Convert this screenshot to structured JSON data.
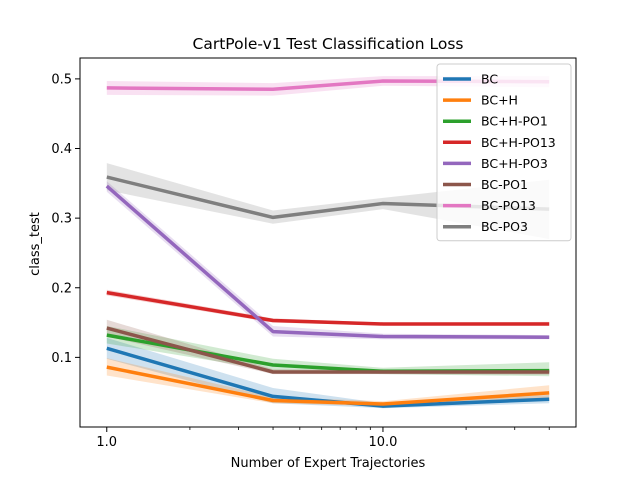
{
  "chart_data": {
    "type": "line",
    "title": "CartPole-v1 Test Classification Loss",
    "xlabel": "Number of Expert Trajectories",
    "ylabel": "class_test",
    "x_scale": "log",
    "x": [
      1,
      4,
      10,
      40
    ],
    "xticks": [
      1,
      10
    ],
    "xtick_labels": [
      "1.0",
      "10.0"
    ],
    "xlim": [
      0.8,
      50
    ],
    "yticks": [
      0.1,
      0.2,
      0.3,
      0.4,
      0.5
    ],
    "ytick_labels": [
      "0.1",
      "0.2",
      "0.3",
      "0.4",
      "0.5"
    ],
    "ylim": [
      0.0,
      0.53
    ],
    "grid": false,
    "legend_position": "top-right",
    "series": [
      {
        "name": "BC",
        "color": "#1f77b4",
        "values": [
          0.113,
          0.044,
          0.03,
          0.04
        ],
        "lower": [
          0.098,
          0.034,
          0.027,
          0.034
        ],
        "upper": [
          0.128,
          0.056,
          0.034,
          0.046
        ]
      },
      {
        "name": "BC+H",
        "color": "#ff7f0e",
        "values": [
          0.086,
          0.038,
          0.033,
          0.049
        ],
        "lower": [
          0.074,
          0.034,
          0.03,
          0.04
        ],
        "upper": [
          0.099,
          0.043,
          0.037,
          0.06
        ]
      },
      {
        "name": "BC+H-PO1",
        "color": "#2ca02c",
        "values": [
          0.132,
          0.089,
          0.08,
          0.081
        ],
        "lower": [
          0.12,
          0.081,
          0.076,
          0.073
        ],
        "upper": [
          0.145,
          0.098,
          0.085,
          0.093
        ]
      },
      {
        "name": "BC+H-PO13",
        "color": "#d62728",
        "values": [
          0.193,
          0.153,
          0.148,
          0.148
        ],
        "lower": [
          0.189,
          0.15,
          0.146,
          0.146
        ],
        "upper": [
          0.197,
          0.156,
          0.15,
          0.151
        ]
      },
      {
        "name": "BC+H-PO3",
        "color": "#9467bd",
        "values": [
          0.346,
          0.137,
          0.13,
          0.129
        ],
        "lower": [
          0.338,
          0.13,
          0.126,
          0.126
        ],
        "upper": [
          0.353,
          0.145,
          0.134,
          0.132
        ]
      },
      {
        "name": "BC-PO1",
        "color": "#8c564b",
        "values": [
          0.142,
          0.079,
          0.079,
          0.079
        ],
        "lower": [
          0.13,
          0.076,
          0.076,
          0.075
        ],
        "upper": [
          0.154,
          0.083,
          0.082,
          0.083
        ]
      },
      {
        "name": "BC-PO13",
        "color": "#e377c2",
        "values": [
          0.487,
          0.485,
          0.497,
          0.496
        ],
        "lower": [
          0.477,
          0.476,
          0.49,
          0.488
        ],
        "upper": [
          0.497,
          0.494,
          0.504,
          0.504
        ]
      },
      {
        "name": "BC-PO3",
        "color": "#7f7f7f",
        "values": [
          0.359,
          0.301,
          0.321,
          0.313
        ],
        "lower": [
          0.34,
          0.292,
          0.313,
          0.27
        ],
        "upper": [
          0.379,
          0.311,
          0.329,
          0.355
        ]
      }
    ]
  }
}
